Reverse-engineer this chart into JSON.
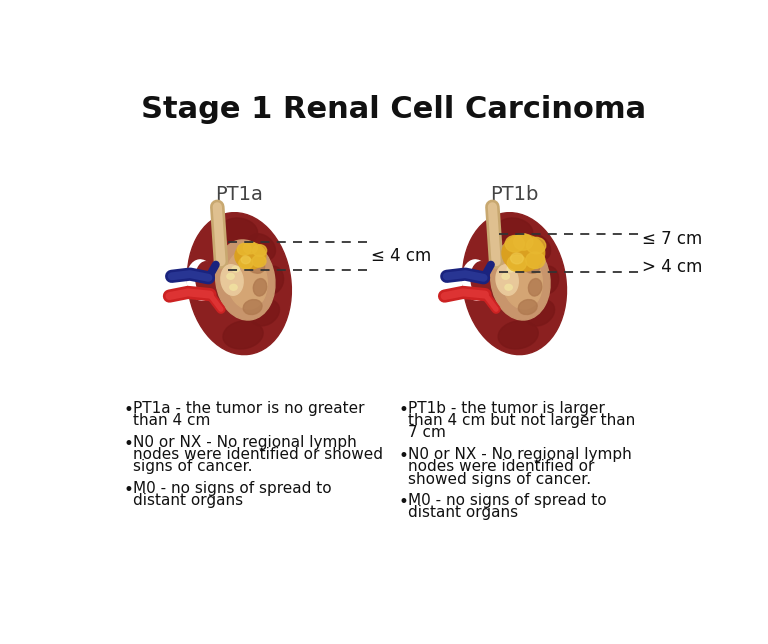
{
  "title": "Stage 1 Renal Cell Carcinoma",
  "title_fontsize": 22,
  "title_fontweight": "bold",
  "background_color": "#ffffff",
  "pt1a_label": "PT1a",
  "pt1b_label": "PT1b",
  "pt1a_measurement": "≤ 4 cm",
  "pt1b_measurement1": "> 4 cm",
  "pt1b_measurement2": "≤ 7 cm",
  "left_bullets": [
    "PT1a - the tumor is no greater\nthan 4 cm",
    "N0 or NX - No regional lymph\nnodes were identified or showed\nsigns of cancer.",
    "M0 - no signs of spread to\ndistant organs"
  ],
  "right_bullets": [
    "PT1b - the tumor is larger\nthan 4 cm but not larger than\n7 cm",
    "N0 or NX - No regional lymph\nnodes were identified or\nshowed signs of cancer.",
    "M0 - no signs of spread to\ndistant organs"
  ],
  "bullet_fontsize": 11,
  "label_fontsize": 14,
  "measurement_fontsize": 12,
  "dashed_color": "#333333",
  "text_color": "#111111"
}
